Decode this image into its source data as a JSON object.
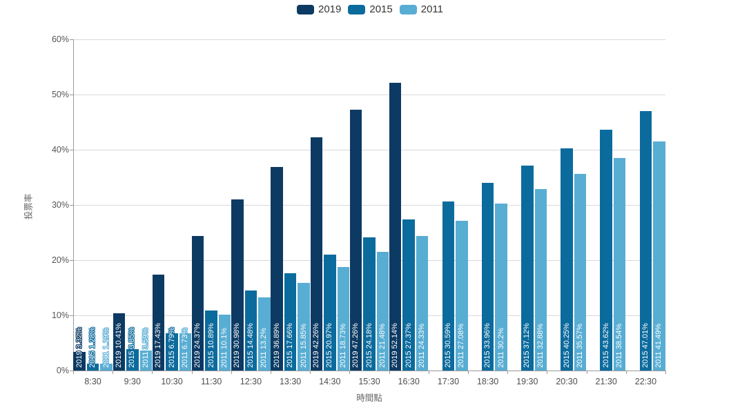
{
  "chart_data": {
    "type": "bar",
    "title": "",
    "xlabel": "時間點",
    "ylabel": "投票率",
    "ylim": [
      0,
      60
    ],
    "y_ticks": {
      "values": [
        0,
        10,
        20,
        30,
        40,
        50,
        60
      ],
      "labels": [
        "0%",
        "10%",
        "20%",
        "30%",
        "40%",
        "50%",
        "60%"
      ]
    },
    "grid": true,
    "legend_position": "top-center",
    "categories": [
      "8:30",
      "9:30",
      "10:30",
      "11:30",
      "12:30",
      "13:30",
      "14:30",
      "15:30",
      "16:30",
      "17:30",
      "18:30",
      "19:30",
      "20:30",
      "21:30",
      "22:30"
    ],
    "series": [
      {
        "name": "2019",
        "color": "#0d3a63",
        "values": [
          3.32,
          10.41,
          17.43,
          24.37,
          30.98,
          36.89,
          42.26,
          47.26,
          52.14,
          null,
          null,
          null,
          null,
          null,
          null
        ]
      },
      {
        "name": "2015",
        "color": "#0c6b9d",
        "values": [
          1.28,
          3.85,
          6.79,
          10.89,
          14.48,
          17.66,
          20.97,
          24.18,
          27.37,
          30.59,
          33.96,
          37.12,
          40.25,
          43.62,
          47.01
        ]
      },
      {
        "name": "2011",
        "color": "#58add3",
        "values": [
          1.19,
          3.59,
          6.73,
          10.1,
          13.2,
          15.85,
          18.73,
          21.48,
          24.33,
          27.08,
          30.2,
          32.88,
          35.57,
          38.54,
          41.49
        ]
      }
    ],
    "bar_label_format": "{series_name} {value}%"
  }
}
